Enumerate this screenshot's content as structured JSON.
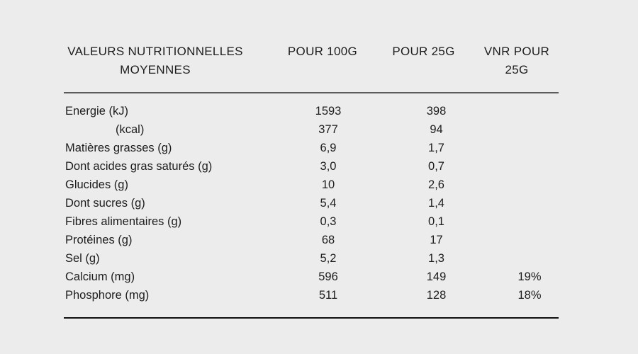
{
  "colors": {
    "background": "#ececec",
    "text": "#1d1d1d",
    "header_rule": "#5c5c5c",
    "bottom_rule": "#101010"
  },
  "chart_data": {
    "type": "table",
    "columns": [
      "VALEURS NUTRITIONNELLES MOYENNES",
      "POUR 100G",
      "POUR 25G",
      "VNR POUR 25G"
    ],
    "rows": [
      {
        "label": "Energie (kJ)",
        "indent": false,
        "pour_100g": "1593",
        "pour_25g": "398",
        "vnr_pour_25g": ""
      },
      {
        "label": "(kcal)",
        "indent": true,
        "pour_100g": "377",
        "pour_25g": "94",
        "vnr_pour_25g": ""
      },
      {
        "label": "Matières grasses (g)",
        "indent": false,
        "pour_100g": "6,9",
        "pour_25g": "1,7",
        "vnr_pour_25g": ""
      },
      {
        "label": "Dont acides gras saturés (g)",
        "indent": false,
        "pour_100g": "3,0",
        "pour_25g": "0,7",
        "vnr_pour_25g": ""
      },
      {
        "label": "Glucides (g)",
        "indent": false,
        "pour_100g": "10",
        "pour_25g": "2,6",
        "vnr_pour_25g": ""
      },
      {
        "label": "Dont sucres (g)",
        "indent": false,
        "pour_100g": "5,4",
        "pour_25g": "1,4",
        "vnr_pour_25g": ""
      },
      {
        "label": "Fibres alimentaires (g)",
        "indent": false,
        "pour_100g": "0,3",
        "pour_25g": "0,1",
        "vnr_pour_25g": ""
      },
      {
        "label": "Protéines (g)",
        "indent": false,
        "pour_100g": "68",
        "pour_25g": "17",
        "vnr_pour_25g": ""
      },
      {
        "label": "Sel (g)",
        "indent": false,
        "pour_100g": "5,2",
        "pour_25g": "1,3",
        "vnr_pour_25g": ""
      },
      {
        "label": "Calcium (mg)",
        "indent": false,
        "pour_100g": "596",
        "pour_25g": "149",
        "vnr_pour_25g": "19%"
      },
      {
        "label": "Phosphore (mg)",
        "indent": false,
        "pour_100g": "511",
        "pour_25g": "128",
        "vnr_pour_25g": "18%"
      }
    ]
  }
}
